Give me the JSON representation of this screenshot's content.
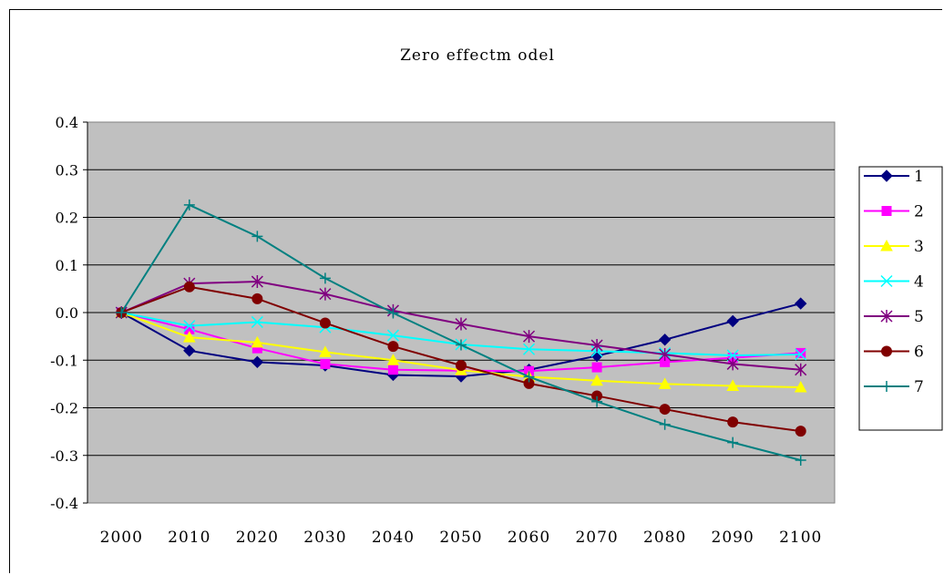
{
  "chart_data": {
    "type": "line",
    "title": "Zero effectm odel",
    "xlabel": "",
    "ylabel": "",
    "x": [
      2000,
      2010,
      2020,
      2030,
      2040,
      2050,
      2060,
      2070,
      2080,
      2090,
      2100
    ],
    "x_tick_labels": [
      "2000",
      "2010",
      "2020",
      "2030",
      "2040",
      "2050",
      "2060",
      "2070",
      "2080",
      "2090",
      "2100"
    ],
    "y_tick_labels": [
      "0.4",
      "0.3",
      "0.2",
      "0.1",
      "0.0",
      "-0.1",
      "-0.2",
      "-0.3",
      "-0.4"
    ],
    "ylim": [
      -0.4,
      0.4
    ],
    "grid": true,
    "plot_background": "#c0c0c0",
    "legend_position": "right",
    "series": [
      {
        "name": "1",
        "color": "#000080",
        "marker": "diamond",
        "values": [
          0.0,
          -0.08,
          -0.104,
          -0.111,
          -0.131,
          -0.134,
          -0.12,
          -0.091,
          -0.057,
          -0.018,
          0.019
        ]
      },
      {
        "name": "2",
        "color": "#ff00ff",
        "marker": "square",
        "values": [
          0.0,
          -0.035,
          -0.075,
          -0.108,
          -0.12,
          -0.122,
          -0.123,
          -0.115,
          -0.104,
          -0.095,
          -0.085
        ]
      },
      {
        "name": "3",
        "color": "#ffff00",
        "marker": "triangle",
        "values": [
          0.0,
          -0.052,
          -0.063,
          -0.083,
          -0.1,
          -0.121,
          -0.135,
          -0.143,
          -0.15,
          -0.154,
          -0.157
        ]
      },
      {
        "name": "4",
        "color": "#00ffff",
        "marker": "x",
        "values": [
          0.0,
          -0.028,
          -0.02,
          -0.031,
          -0.048,
          -0.067,
          -0.077,
          -0.081,
          -0.085,
          -0.09,
          -0.088
        ]
      },
      {
        "name": "5",
        "color": "#800080",
        "marker": "star",
        "values": [
          0.0,
          0.061,
          0.065,
          0.039,
          0.004,
          -0.024,
          -0.05,
          -0.069,
          -0.088,
          -0.108,
          -0.12
        ]
      },
      {
        "name": "6",
        "color": "#800000",
        "marker": "circle",
        "values": [
          0.0,
          0.054,
          0.029,
          -0.022,
          -0.071,
          -0.111,
          -0.149,
          -0.175,
          -0.203,
          -0.23,
          -0.249
        ]
      },
      {
        "name": "7",
        "color": "#008080",
        "marker": "plus",
        "values": [
          0.0,
          0.226,
          0.16,
          0.072,
          -0.001,
          -0.068,
          -0.135,
          -0.187,
          -0.235,
          -0.273,
          -0.31
        ]
      }
    ]
  }
}
